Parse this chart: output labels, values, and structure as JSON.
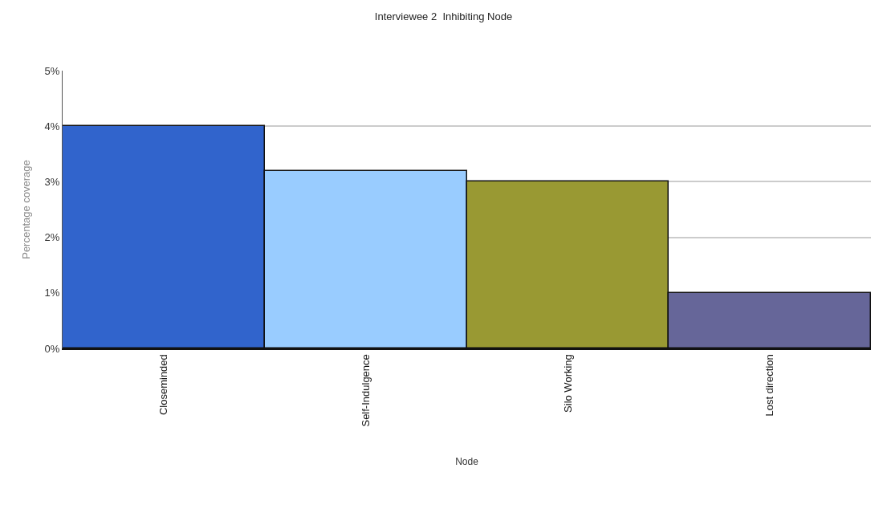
{
  "chart_data": {
    "type": "bar",
    "title": "Interviewee 2  Inhibiting Node",
    "xlabel": "Node",
    "ylabel": "Percentage coverage",
    "categories": [
      "Closeminded",
      "Self-Indulgence",
      "Silo Working",
      "Lost direction"
    ],
    "values": [
      4.0,
      3.2,
      3.0,
      1.0
    ],
    "colors": [
      "#3164cc",
      "#99ccff",
      "#999933",
      "#666699"
    ],
    "ylim": [
      0,
      5
    ],
    "yticks": [
      {
        "value": 0,
        "label": "0%"
      },
      {
        "value": 1,
        "label": "1%"
      },
      {
        "value": 2,
        "label": "2%"
      },
      {
        "value": 3,
        "label": "3%"
      },
      {
        "value": 4,
        "label": "4%"
      },
      {
        "value": 5,
        "label": "5%"
      }
    ],
    "grid": "y",
    "legend": false
  }
}
